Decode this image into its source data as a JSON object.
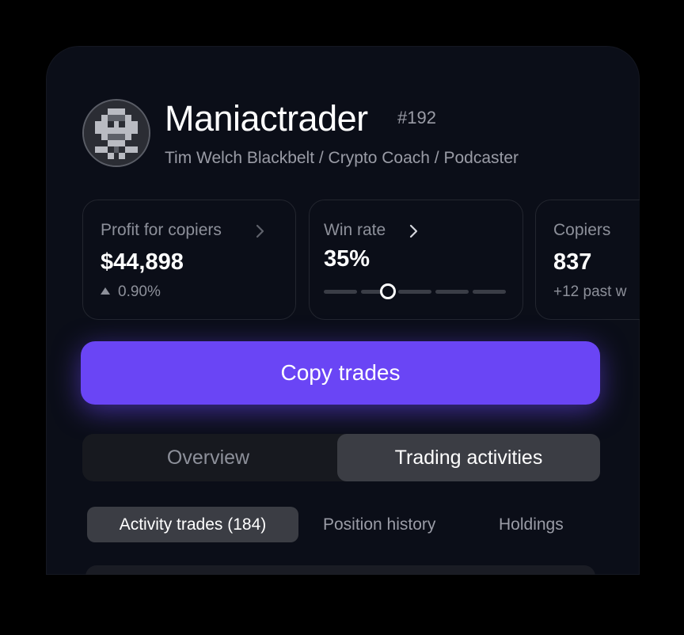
{
  "profile": {
    "name": "Maniactrader",
    "rank": "#192",
    "bio": "Tim Welch Blackbelt / Crypto Coach / Podcaster"
  },
  "stats": {
    "profit": {
      "label": "Profit for copiers",
      "value": "$44,898",
      "change": "0.90%"
    },
    "win_rate": {
      "label": "Win rate",
      "value": "35%",
      "meter_fraction": 0.35
    },
    "copiers": {
      "label": "Copiers",
      "value": "837",
      "change": "+12 past w"
    }
  },
  "actions": {
    "copy_label": "Copy trades"
  },
  "tabs": [
    {
      "label": "Overview",
      "active": false
    },
    {
      "label": "Trading activities",
      "active": true
    }
  ],
  "subtabs": [
    {
      "label": "Activity trades (184)",
      "active": true
    },
    {
      "label": "Position history",
      "active": false
    },
    {
      "label": "Holdings",
      "active": false
    }
  ],
  "colors": {
    "accent": "#6a45f5",
    "background": "#0b0e18",
    "card_border": "#23262f",
    "muted_text": "#8d909a"
  },
  "icons": {
    "chevron": "chevron-right-icon",
    "trend": "arrow-up-icon",
    "avatar": "pixel-skull-avatar"
  }
}
